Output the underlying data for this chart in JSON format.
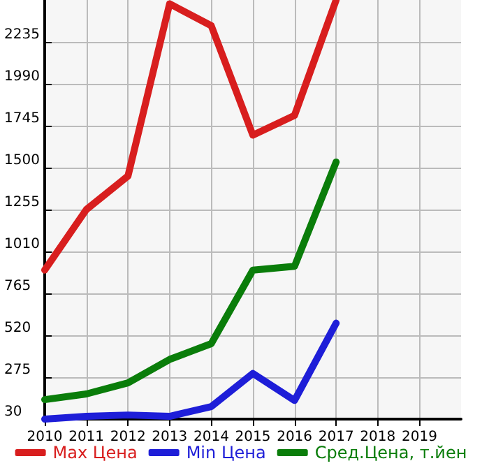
{
  "chart_data": {
    "type": "line",
    "x": [
      2010,
      2011,
      2012,
      2013,
      2014,
      2015,
      2016,
      2017
    ],
    "series": [
      {
        "name": "Max Цена",
        "color": "#d81e1e",
        "values": [
          901,
          1255,
          1451,
          2458,
          2330,
          1690,
          1805,
          2480
        ]
      },
      {
        "name": "Min Цена",
        "color": "#1e1ed8",
        "values": [
          30,
          46,
          54,
          46,
          103,
          297,
          139,
          591
        ]
      },
      {
        "name": "Сред.Цена, т.йен",
        "color": "#0a7d0a",
        "values": [
          144,
          177,
          242,
          379,
          471,
          901,
          923,
          1533
        ]
      }
    ],
    "xlim": [
      2010,
      2020
    ],
    "xticks": [
      2010,
      2011,
      2012,
      2013,
      2014,
      2015,
      2016,
      2017,
      2018,
      2019
    ],
    "ylim": [
      30,
      2480
    ],
    "yticks": [
      30,
      275,
      520,
      765,
      1010,
      1255,
      1500,
      1745,
      1990,
      2235
    ],
    "grid": true,
    "legend": "bottom",
    "marker": "none",
    "line_style": "solid"
  }
}
